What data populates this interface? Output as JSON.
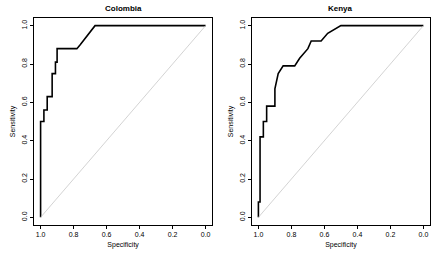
{
  "chart_data": [
    {
      "type": "line",
      "title": "Colombia",
      "x_label": "Specificity",
      "y_label": "Sensitivity",
      "xlim": [
        1.04,
        -0.04
      ],
      "ylim": [
        -0.04,
        1.04
      ],
      "xticks": [
        {
          "value": 1,
          "label": "1.0"
        },
        0.8,
        0.6,
        0.4,
        0.2,
        {
          "value": 0,
          "label": "0.0"
        }
      ],
      "yticks": [
        {
          "value": 0,
          "label": "0.0"
        },
        0.2,
        0.4,
        0.6,
        0.8,
        {
          "value": 1,
          "label": "1.0"
        }
      ],
      "grid": false,
      "series": [
        {
          "color": "#000000",
          "line_style": "solid",
          "x": [
            1.0,
            1.0,
            0.98,
            0.98,
            0.96,
            0.96,
            0.93,
            0.93,
            0.91,
            0.91,
            0.9,
            0.9,
            0.78,
            0.76,
            0.67,
            0.0
          ],
          "values": [
            0.0,
            0.5,
            0.5,
            0.56,
            0.56,
            0.63,
            0.63,
            0.75,
            0.75,
            0.81,
            0.81,
            0.88,
            0.88,
            0.9,
            1.0,
            1.0
          ]
        },
        {
          "color": "#c8c8c8",
          "line_style": "solid",
          "x": [
            1.0,
            0.0
          ],
          "values": [
            0.0,
            1.0
          ]
        }
      ]
    },
    {
      "type": "line",
      "title": "Kenya",
      "x_label": "Specificity",
      "y_label": "Sensitivity",
      "xlim": [
        1.04,
        -0.04
      ],
      "ylim": [
        -0.04,
        1.04
      ],
      "xticks": [
        {
          "value": 1,
          "label": "1.0"
        },
        0.8,
        0.6,
        0.4,
        0.2,
        {
          "value": 0,
          "label": "0.0"
        }
      ],
      "yticks": [
        {
          "value": 0,
          "label": "0.0"
        },
        0.2,
        0.4,
        0.6,
        0.8,
        {
          "value": 1,
          "label": "1.0"
        }
      ],
      "grid": false,
      "series": [
        {
          "color": "#000000",
          "line_style": "solid",
          "x": [
            1.0,
            1.0,
            0.99,
            0.99,
            0.97,
            0.97,
            0.95,
            0.95,
            0.9,
            0.9,
            0.88,
            0.85,
            0.78,
            0.75,
            0.7,
            0.68,
            0.62,
            0.58,
            0.5,
            0.0
          ],
          "values": [
            0.0,
            0.08,
            0.08,
            0.42,
            0.42,
            0.5,
            0.5,
            0.58,
            0.58,
            0.67,
            0.75,
            0.79,
            0.79,
            0.83,
            0.88,
            0.92,
            0.92,
            0.96,
            1.0,
            1.0
          ]
        },
        {
          "color": "#c8c8c8",
          "line_style": "solid",
          "x": [
            1.0,
            0.0
          ],
          "values": [
            0.0,
            1.0
          ]
        }
      ]
    }
  ]
}
